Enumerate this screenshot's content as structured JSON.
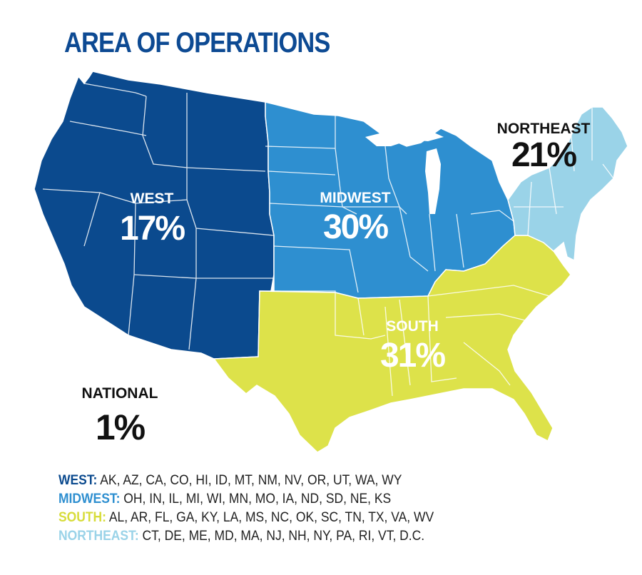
{
  "title": "AREA OF OPERATIONS",
  "colors": {
    "title": "#0d4a93",
    "west": "#0b4a8e",
    "midwest": "#2e8fd0",
    "south": "#dde24a",
    "northeast": "#9ad3e8",
    "borders": "#ffffff"
  },
  "regions": {
    "west": {
      "label": "WEST",
      "percent": "17%"
    },
    "midwest": {
      "label": "MIDWEST",
      "percent": "30%"
    },
    "south": {
      "label": "SOUTH",
      "percent": "31%"
    },
    "northeast": {
      "label": "NORTHEAST",
      "percent": "21%"
    }
  },
  "national": {
    "label": "NATIONAL",
    "percent": "1%"
  },
  "legend": [
    {
      "key": "WEST:",
      "states": "AK, AZ, CA, CO, HI, ID, MT, NM, NV, OR, UT, WA, WY",
      "color": "#0b4a8e"
    },
    {
      "key": "MIDWEST:",
      "states": "OH, IN, IL, MI, WI, MN, MO, IA, ND, SD, NE, KS",
      "color": "#2e8fd0"
    },
    {
      "key": "SOUTH:",
      "states": "AL, AR, FL, GA, KY, LA, MS, NC, OK, SC, TN, TX, VA, WV",
      "color": "#d7dc3a"
    },
    {
      "key": "NORTHEAST:",
      "states": "CT, DE, ME, MD, MA, NJ, NH, NY, PA, RI, VT, D.C.",
      "color": "#9ad3e8"
    }
  ]
}
